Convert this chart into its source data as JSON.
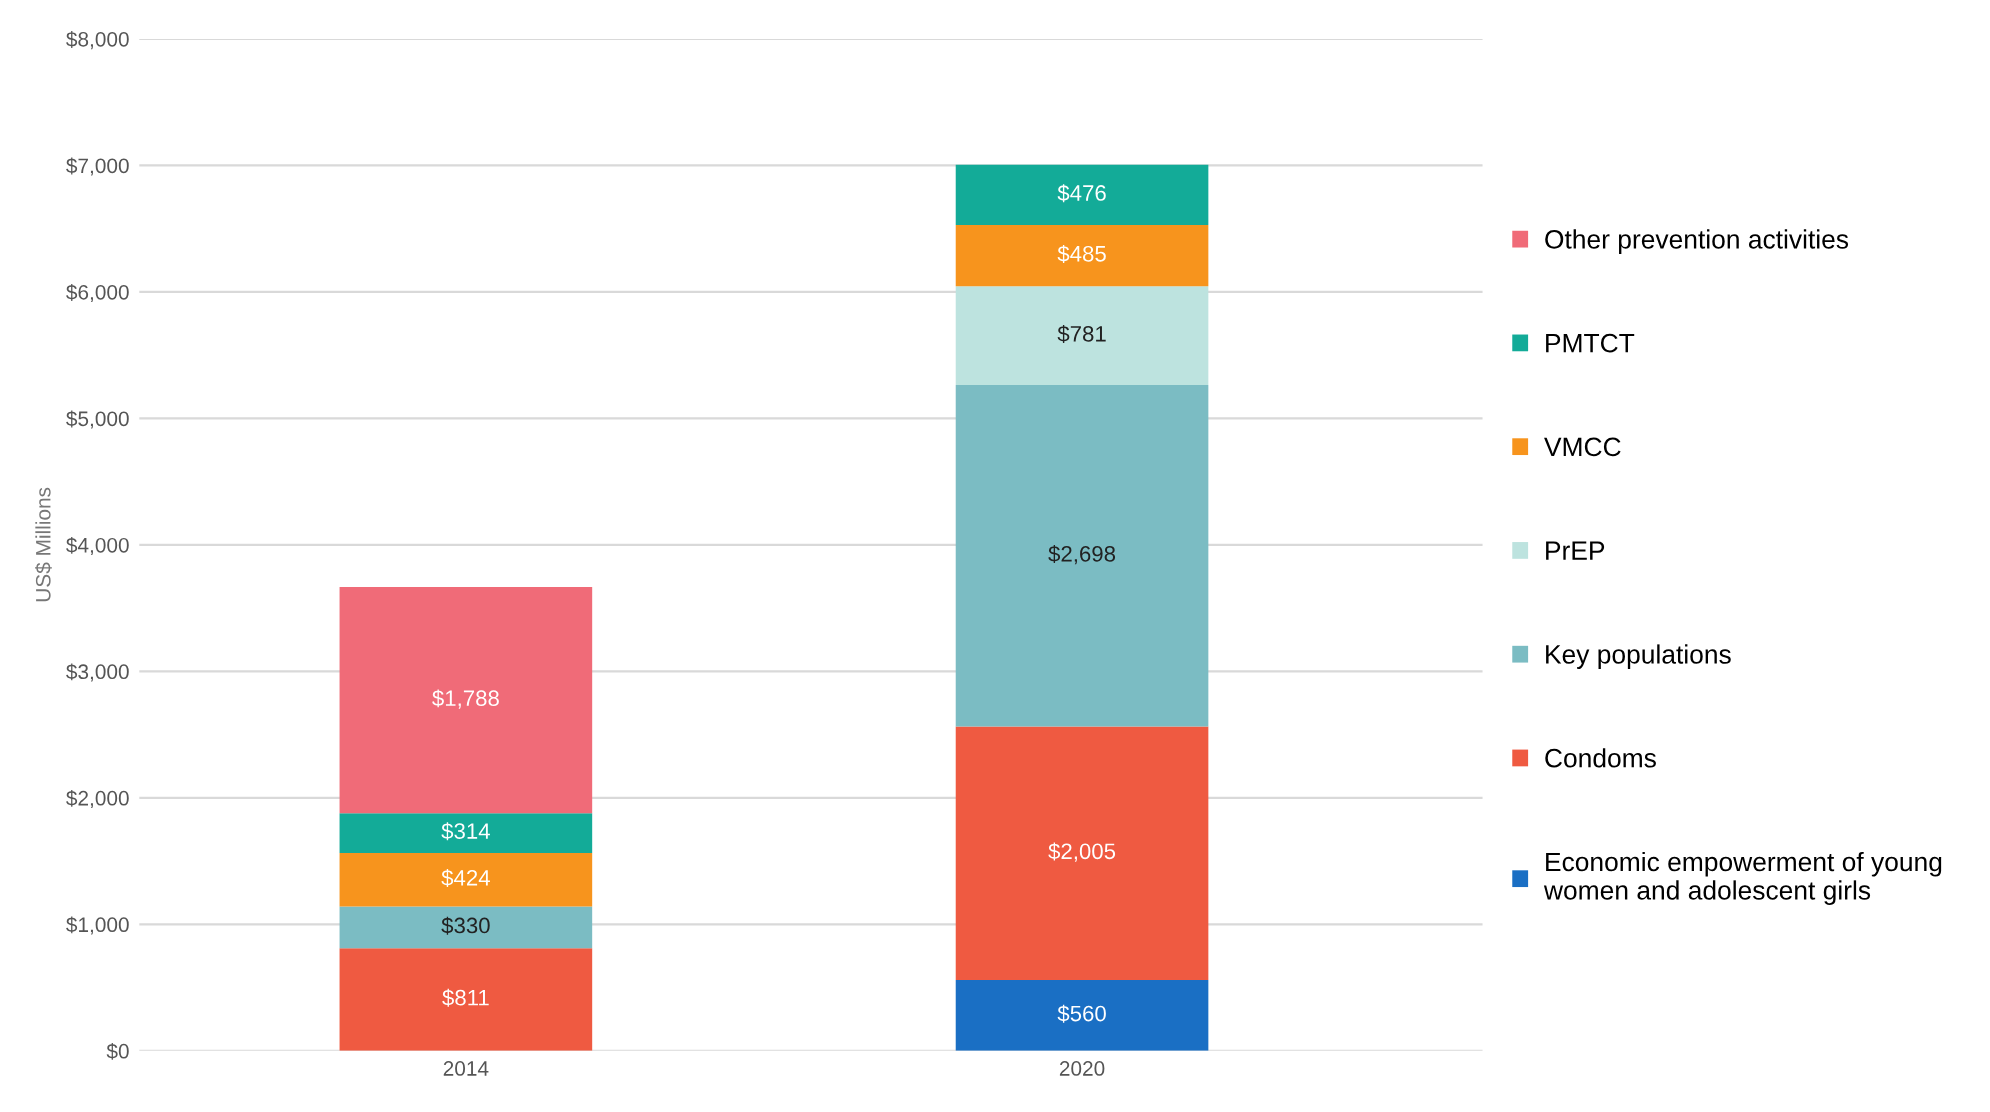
{
  "chart_data": {
    "type": "bar",
    "stacked": true,
    "ylabel": "US$ Millions",
    "categories": [
      "2014",
      "2020"
    ],
    "ylim": [
      0,
      8000
    ],
    "yticks": [
      {
        "value": 0,
        "label": "$0"
      },
      {
        "value": 1000,
        "label": "$1,000"
      },
      {
        "value": 2000,
        "label": "$2,000"
      },
      {
        "value": 3000,
        "label": "$3,000"
      },
      {
        "value": 4000,
        "label": "$4,000"
      },
      {
        "value": 5000,
        "label": "$5,000"
      },
      {
        "value": 6000,
        "label": "$6,000"
      },
      {
        "value": 7000,
        "label": "$7,000"
      },
      {
        "value": 8000,
        "label": "$8,000"
      }
    ],
    "grid": "y",
    "legend": "right",
    "series": [
      {
        "name": "Economic empowerment of young\nwomen and adolescent girls",
        "color": "#1a6fc4",
        "values": [
          null,
          560
        ],
        "value_labels": [
          null,
          "$560"
        ]
      },
      {
        "name": "Condoms",
        "color": "#ef5a41",
        "values": [
          811,
          2005
        ],
        "value_labels": [
          "$811",
          "$2,005"
        ]
      },
      {
        "name": "Key populations",
        "color": "#7bbcc3",
        "values": [
          330,
          2698
        ],
        "value_labels": [
          "$330",
          "$2,698"
        ]
      },
      {
        "name": "PrEP",
        "color": "#bde3df",
        "values": [
          null,
          781
        ],
        "value_labels": [
          null,
          "$781"
        ]
      },
      {
        "name": "VMCC",
        "color": "#f7941d",
        "values": [
          424,
          485
        ],
        "value_labels": [
          "$424",
          "$485"
        ]
      },
      {
        "name": "PMTCT",
        "color": "#13ab98",
        "values": [
          314,
          476
        ],
        "value_labels": [
          "$314",
          "$476"
        ]
      },
      {
        "name": "Other prevention activities",
        "color": "#f06b78",
        "values": [
          1788,
          null
        ],
        "value_labels": [
          "$1,788",
          null
        ]
      }
    ]
  }
}
